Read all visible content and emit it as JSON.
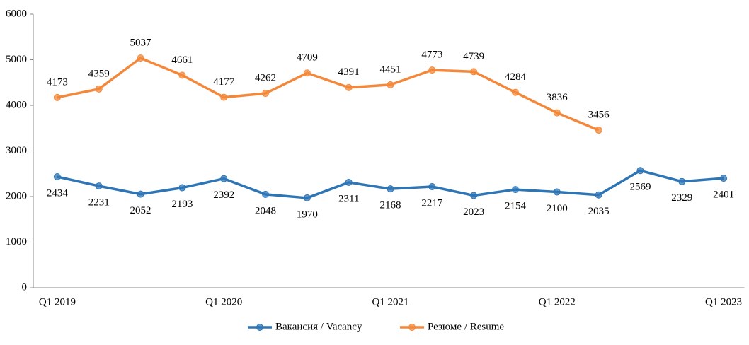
{
  "chart_data": {
    "type": "line",
    "categories": [
      "Q1 2019",
      null,
      null,
      null,
      "Q1 2020",
      null,
      null,
      null,
      "Q1 2021",
      null,
      null,
      null,
      "Q1 2022",
      null,
      null,
      null,
      "Q1 2023"
    ],
    "series": [
      {
        "name": "Вакансия / Vacancy",
        "color": "#2e75b6",
        "values": [
          2434,
          2231,
          2052,
          2193,
          2392,
          2048,
          1970,
          2311,
          2168,
          2217,
          2023,
          2154,
          2100,
          2035,
          2569,
          2329,
          2401
        ]
      },
      {
        "name": "Резюме / Resume",
        "color": "#f4883a",
        "values": [
          4173,
          4359,
          5037,
          4661,
          4177,
          4262,
          4709,
          4391,
          4451,
          4773,
          4739,
          4284,
          3836,
          3456,
          null,
          null,
          null
        ]
      }
    ],
    "ylim": [
      0,
      6000
    ],
    "yticks": [
      0,
      1000,
      2000,
      3000,
      4000,
      5000,
      6000
    ],
    "grid": false,
    "legend": "bottom"
  }
}
